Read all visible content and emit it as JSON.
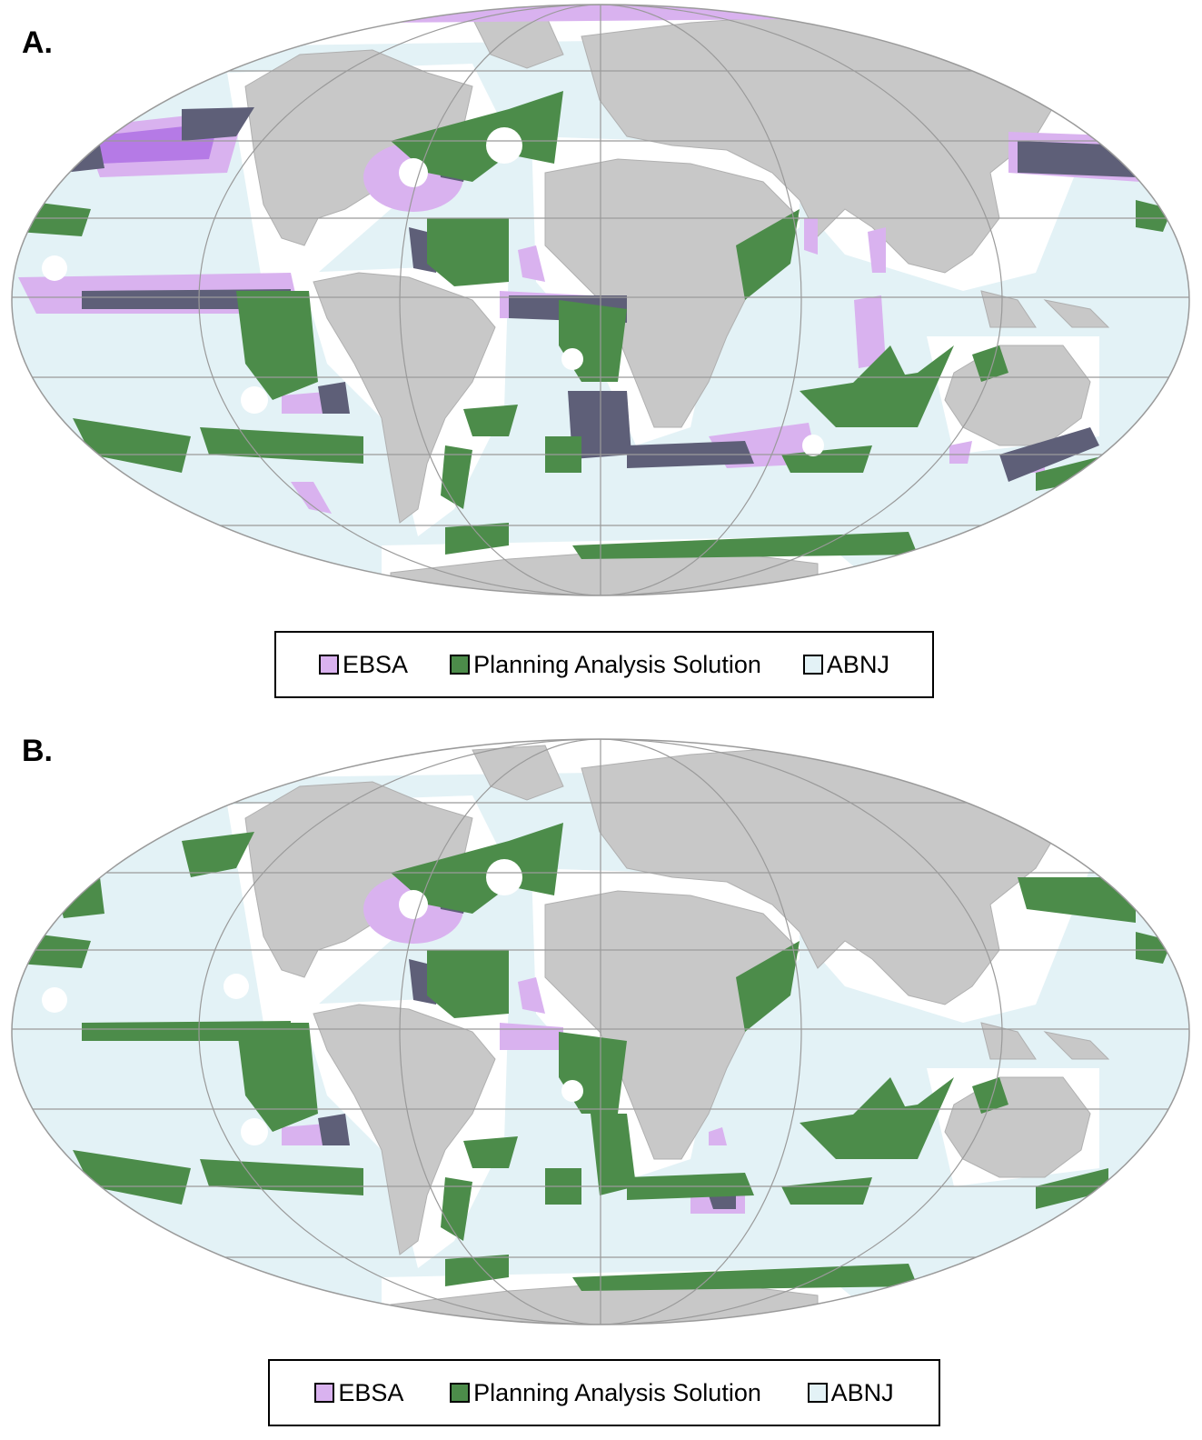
{
  "colors": {
    "ocean": "#e3f2f6",
    "land": "#c8c8c8",
    "coast": "#ffffff",
    "ebsa": "#d9b2ef",
    "ebsa_strong": "#b57ae6",
    "solution": "#4c8c4a",
    "overlap": "#5e5f78",
    "graticule": "#9a9a9a"
  },
  "icons": {
    "map": "world-map-mollweide"
  },
  "panels": [
    {
      "label": "A.",
      "legend": [
        {
          "label": "EBSA",
          "color": "#d9b2ef"
        },
        {
          "label": "Planning Analysis Solution",
          "color": "#4c8c4a"
        },
        {
          "label": "ABNJ",
          "color": "#e3f2f6"
        }
      ]
    },
    {
      "label": "B.",
      "legend": [
        {
          "label": "EBSA",
          "color": "#d9b2ef"
        },
        {
          "label": "Planning Analysis Solution",
          "color": "#4c8c4a"
        },
        {
          "label": "ABNJ",
          "color": "#e3f2f6"
        }
      ]
    }
  ]
}
